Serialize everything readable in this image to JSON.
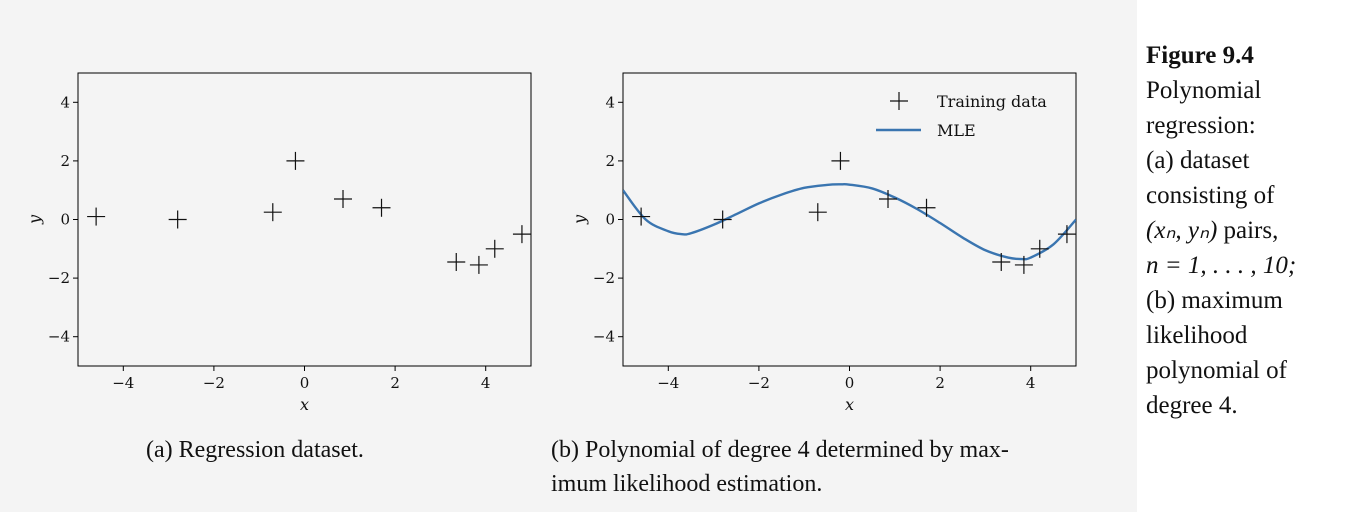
{
  "chart_data": [
    {
      "type": "scatter",
      "panel": "a",
      "xlabel": "x",
      "ylabel": "y",
      "xlim": [
        -5,
        5
      ],
      "ylim": [
        -5,
        5
      ],
      "xticks": [
        -4,
        -2,
        0,
        2,
        4
      ],
      "yticks": [
        -4,
        -2,
        0,
        2,
        4
      ],
      "xtick_labels": [
        "−4",
        "−2",
        "0",
        "2",
        "4"
      ],
      "ytick_labels": [
        "−4",
        "−2",
        "0",
        "2",
        "4"
      ],
      "grid": false,
      "points": {
        "x": [
          -4.6,
          -2.8,
          -0.7,
          -0.2,
          0.85,
          1.7,
          3.35,
          3.85,
          4.2,
          4.8
        ],
        "y": [
          0.1,
          0.0,
          0.25,
          2.0,
          0.7,
          0.4,
          -1.45,
          -1.55,
          -1.0,
          -0.5
        ]
      }
    },
    {
      "type": "line",
      "panel": "b",
      "xlabel": "x",
      "ylabel": "y",
      "xlim": [
        -5,
        5
      ],
      "ylim": [
        -5,
        5
      ],
      "xticks": [
        -4,
        -2,
        0,
        2,
        4
      ],
      "yticks": [
        -4,
        -2,
        0,
        2,
        4
      ],
      "xtick_labels": [
        "−4",
        "−2",
        "0",
        "2",
        "4"
      ],
      "ytick_labels": [
        "−4",
        "−2",
        "0",
        "2",
        "4"
      ],
      "grid": false,
      "legend_position": "top-right",
      "series": [
        {
          "name": "Training data",
          "kind": "scatter",
          "marker": "plus",
          "x": [
            -4.6,
            -2.8,
            -0.7,
            -0.2,
            0.85,
            1.7,
            3.35,
            3.85,
            4.2,
            4.8
          ],
          "y": [
            0.1,
            0.0,
            0.25,
            2.0,
            0.7,
            0.4,
            -1.45,
            -1.55,
            -1.0,
            -0.5
          ]
        },
        {
          "name": "MLE",
          "kind": "line",
          "color": "#3a75b0",
          "x": [
            -5,
            -4.5,
            -4,
            -3.7,
            -3.5,
            -3,
            -2.5,
            -2,
            -1.5,
            -1,
            -0.5,
            -0.2,
            0,
            0.5,
            1,
            1.5,
            2,
            2.5,
            3,
            3.5,
            3.8,
            4,
            4.5,
            5
          ],
          "y": [
            1.0,
            0.0,
            -0.4,
            -0.5,
            -0.47,
            -0.18,
            0.18,
            0.55,
            0.85,
            1.08,
            1.18,
            1.2,
            1.19,
            1.06,
            0.75,
            0.35,
            -0.12,
            -0.62,
            -1.05,
            -1.3,
            -1.35,
            -1.3,
            -0.85,
            0.0
          ]
        }
      ]
    }
  ],
  "captions": {
    "sub_a": "(a) Regression dataset.",
    "sub_b_line1": "(b) Polynomial of degree 4 determined by max-",
    "sub_b_line2": "imum likelihood estimation."
  },
  "side_caption": {
    "figure_number": "Figure 9.4",
    "lines": [
      "Polynomial",
      "regression:",
      "(a) dataset",
      "consisting of"
    ],
    "pairs_math": "(xₙ, yₙ)",
    "pairs_suffix": " pairs,",
    "range_math": "n = 1, . . . , 10;",
    "tail_lines": [
      "(b) maximum",
      "likelihood",
      "polynomial of",
      "degree 4."
    ]
  },
  "colors": {
    "figure_background": "#f4f4f4",
    "mle_line": "#3a75b0",
    "markers": "#111111"
  }
}
